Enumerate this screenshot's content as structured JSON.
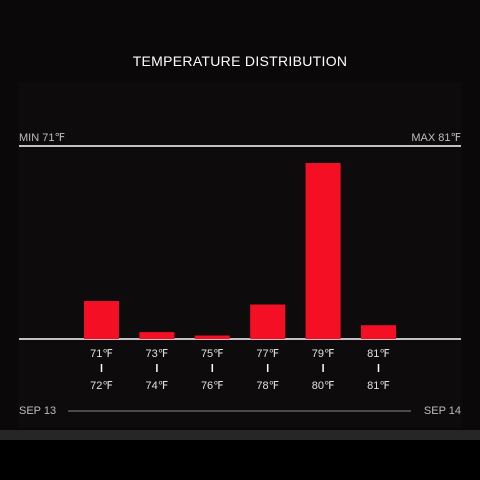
{
  "chart_data": {
    "type": "bar",
    "title": "TEMPERATURE DISTRIBUTION",
    "unit": "℉",
    "min_label": "MIN 71℉",
    "max_label": "MAX 81℉",
    "bins": [
      {
        "low": "71℉",
        "high": "72℉",
        "value": 11
      },
      {
        "low": "73℉",
        "high": "74℉",
        "value": 2
      },
      {
        "low": "75℉",
        "high": "76℉",
        "value": 1
      },
      {
        "low": "77℉",
        "high": "78℉",
        "value": 10
      },
      {
        "low": "79℉",
        "high": "80℉",
        "value": 51
      },
      {
        "low": "81℉",
        "high": "81℉",
        "value": 4
      }
    ],
    "ylim": [
      0,
      51
    ],
    "date_range": {
      "start": "SEP 13",
      "end": "SEP 14"
    },
    "grid": false,
    "colors": {
      "bar": "#f40f25",
      "axis": "#ffffff",
      "background": "#0a0809"
    }
  }
}
